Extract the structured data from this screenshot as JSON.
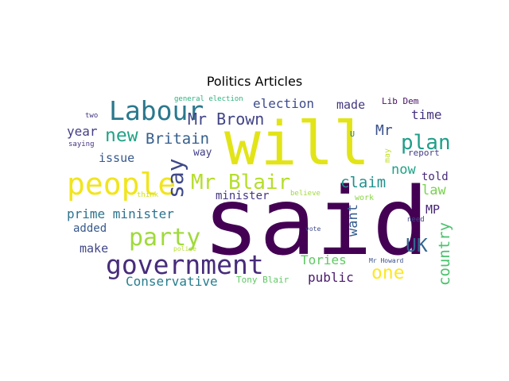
{
  "chart_data": {
    "type": "wordcloud",
    "title": "Politics Articles",
    "colormap": "viridis",
    "words": [
      {
        "text": "said",
        "weight": 1.0,
        "color": "#440154"
      },
      {
        "text": "will",
        "weight": 0.78,
        "color": "#e2e418"
      },
      {
        "text": "government",
        "weight": 0.4,
        "color": "#472c7a"
      },
      {
        "text": "people",
        "weight": 0.4,
        "color": "#f1e51d"
      },
      {
        "text": "Labour",
        "weight": 0.38,
        "color": "#2a788e"
      },
      {
        "text": "party",
        "weight": 0.34,
        "color": "#9fda3a"
      },
      {
        "text": "say",
        "weight": 0.32,
        "color": "#3f4889"
      },
      {
        "text": "Mr Blair",
        "weight": 0.31,
        "color": "#b5de2b"
      },
      {
        "text": "plan",
        "weight": 0.3,
        "color": "#1f9e89"
      },
      {
        "text": "new",
        "weight": 0.27,
        "color": "#20a386"
      },
      {
        "text": "UK",
        "weight": 0.26,
        "color": "#31668e"
      },
      {
        "text": "one",
        "weight": 0.26,
        "color": "#fde725"
      },
      {
        "text": "Mr Brown",
        "weight": 0.22,
        "color": "#414487"
      },
      {
        "text": "Britain",
        "weight": 0.21,
        "color": "#355f8d"
      },
      {
        "text": "claim",
        "weight": 0.21,
        "color": "#21918c"
      },
      {
        "text": "country",
        "weight": 0.21,
        "color": "#4ac16d"
      },
      {
        "text": "Mr",
        "weight": 0.2,
        "color": "#3b528b"
      },
      {
        "text": "now",
        "weight": 0.19,
        "color": "#1fa287"
      },
      {
        "text": "law",
        "weight": 0.19,
        "color": "#7ad151"
      },
      {
        "text": "want",
        "weight": 0.18,
        "color": "#365d8d"
      },
      {
        "text": "election",
        "weight": 0.18,
        "color": "#3e4c8a"
      },
      {
        "text": "time",
        "weight": 0.18,
        "color": "#46337f"
      },
      {
        "text": "prime minister",
        "weight": 0.18,
        "color": "#2c738e"
      },
      {
        "text": "Tories",
        "weight": 0.18,
        "color": "#5ec962"
      },
      {
        "text": "public",
        "weight": 0.18,
        "color": "#48186a"
      },
      {
        "text": "Conservative",
        "weight": 0.17,
        "color": "#287d8e"
      },
      {
        "text": "year",
        "weight": 0.17,
        "color": "#433e85"
      },
      {
        "text": "made",
        "weight": 0.16,
        "color": "#453781"
      },
      {
        "text": "issue",
        "weight": 0.16,
        "color": "#38588c"
      },
      {
        "text": "make",
        "weight": 0.16,
        "color": "#404688"
      },
      {
        "text": "MP",
        "weight": 0.16,
        "color": "#482677"
      },
      {
        "text": "told",
        "weight": 0.15,
        "color": "#482979"
      },
      {
        "text": "minister",
        "weight": 0.15,
        "color": "#453882"
      },
      {
        "text": "added",
        "weight": 0.15,
        "color": "#38598c"
      },
      {
        "text": "way",
        "weight": 0.14,
        "color": "#424086"
      },
      {
        "text": "Lib Dem",
        "weight": 0.12,
        "color": "#471063"
      },
      {
        "text": "report",
        "weight": 0.11,
        "color": "#433d84"
      },
      {
        "text": "Tony Blair",
        "weight": 0.1,
        "color": "#5ec962"
      },
      {
        "text": "work",
        "weight": 0.09,
        "color": "#8bd646"
      },
      {
        "text": "general election",
        "weight": 0.08,
        "color": "#2db27d"
      },
      {
        "text": "U",
        "weight": 0.08,
        "color": "#2d708e"
      },
      {
        "text": "may",
        "weight": 0.08,
        "color": "#c2df23"
      },
      {
        "text": "need",
        "weight": 0.07,
        "color": "#414487"
      },
      {
        "text": "two",
        "weight": 0.07,
        "color": "#443983"
      },
      {
        "text": "saying",
        "weight": 0.07,
        "color": "#46337f"
      },
      {
        "text": "think",
        "weight": 0.07,
        "color": "#d2e21b"
      },
      {
        "text": "believe",
        "weight": 0.07,
        "color": "#a0da39"
      },
      {
        "text": "vote",
        "weight": 0.07,
        "color": "#3e4989"
      },
      {
        "text": "police",
        "weight": 0.06,
        "color": "#b5de2b"
      },
      {
        "text": "Mr Howard",
        "weight": 0.06,
        "color": "#3b528b"
      }
    ]
  }
}
